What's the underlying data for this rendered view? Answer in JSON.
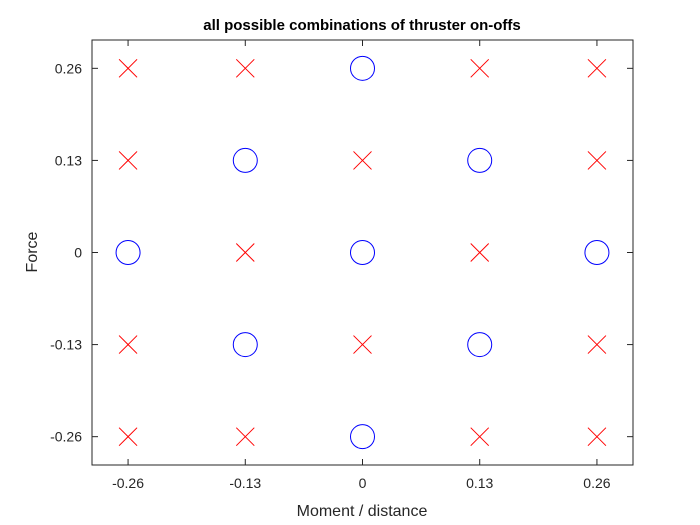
{
  "chart_data": {
    "type": "scatter",
    "title": "all possible combinations of thruster on-offs",
    "xlabel": "Moment / distance",
    "ylabel": "Force",
    "xlim": [
      -0.3,
      0.3
    ],
    "ylim": [
      -0.3,
      0.3
    ],
    "x_ticks": [
      -0.26,
      -0.13,
      0,
      0.13,
      0.26
    ],
    "y_ticks": [
      -0.26,
      -0.13,
      0,
      0.13,
      0.26
    ],
    "x_tick_labels": [
      "-0.26",
      "-0.13",
      "0",
      "0.13",
      "0.26"
    ],
    "y_tick_labels": [
      "-0.26",
      "-0.13",
      "0",
      "0.13",
      "0.26"
    ],
    "grid": false,
    "series": [
      {
        "marker": "x",
        "color": "#ff0000",
        "points": [
          [
            -0.26,
            0.26
          ],
          [
            -0.13,
            0.26
          ],
          [
            0.13,
            0.26
          ],
          [
            0.26,
            0.26
          ],
          [
            -0.26,
            0.13
          ],
          [
            0,
            0.13
          ],
          [
            0.26,
            0.13
          ],
          [
            -0.13,
            0
          ],
          [
            0.13,
            0
          ],
          [
            -0.26,
            -0.13
          ],
          [
            0,
            -0.13
          ],
          [
            0.26,
            -0.13
          ],
          [
            -0.26,
            -0.26
          ],
          [
            -0.13,
            -0.26
          ],
          [
            0.13,
            -0.26
          ],
          [
            0.26,
            -0.26
          ]
        ]
      },
      {
        "marker": "o",
        "color": "#0000ff",
        "points": [
          [
            0,
            0.26
          ],
          [
            -0.13,
            0.13
          ],
          [
            0.13,
            0.13
          ],
          [
            -0.26,
            0
          ],
          [
            0,
            0
          ],
          [
            0.26,
            0
          ],
          [
            -0.13,
            -0.13
          ],
          [
            0.13,
            -0.13
          ],
          [
            0,
            -0.26
          ]
        ]
      }
    ]
  }
}
